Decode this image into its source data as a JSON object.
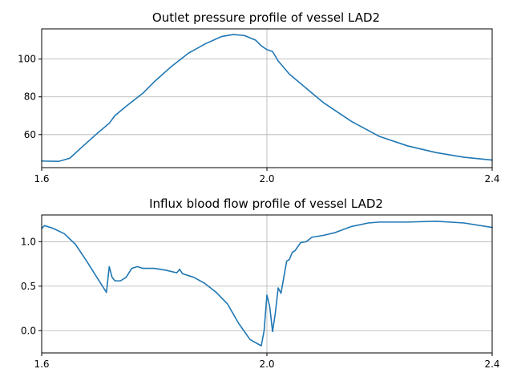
{
  "colors": {
    "series": "#1f77b4",
    "grid": "#b0b0b0"
  },
  "chart_data": [
    {
      "type": "line",
      "title": "Outlet pressure profile of vessel LAD2",
      "xlabel": "",
      "ylabel": "",
      "xlim": [
        1.6,
        2.4
      ],
      "ylim": [
        42.5,
        116
      ],
      "xticks": [
        1.6,
        2.0,
        2.4
      ],
      "xtick_labels": [
        "1.6",
        "2.0",
        "2.4"
      ],
      "yticks": [
        60,
        80,
        100
      ],
      "ytick_labels": [
        "60",
        "80",
        "100"
      ],
      "grid": true,
      "series": [
        {
          "x": [
            1.6,
            1.63,
            1.65,
            1.67,
            1.7,
            1.72,
            1.73,
            1.75,
            1.78,
            1.8,
            1.83,
            1.86,
            1.89,
            1.92,
            1.94,
            1.96,
            1.98,
            1.99,
            2.0,
            2.01,
            2.02,
            2.04,
            2.06,
            2.1,
            2.15,
            2.2,
            2.25,
            2.3,
            2.35,
            2.4
          ],
          "y": [
            46,
            45.8,
            47.5,
            53,
            61,
            66,
            70,
            75,
            82,
            88,
            96,
            103,
            108,
            112,
            113,
            112.5,
            110,
            107,
            105,
            104,
            99,
            92,
            87,
            77,
            67,
            59,
            54,
            50.5,
            48,
            46.5
          ]
        }
      ]
    },
    {
      "type": "line",
      "title": "Influx blood flow profile of vessel LAD2",
      "xlabel": "",
      "ylabel": "",
      "xlim": [
        1.6,
        2.4
      ],
      "ylim": [
        -0.25,
        1.3
      ],
      "xticks": [
        1.6,
        2.0,
        2.4
      ],
      "xtick_labels": [
        "1.6",
        "2.0",
        "2.4"
      ],
      "yticks": [
        0.0,
        0.5,
        1.0
      ],
      "ytick_labels": [
        "0.0",
        "0.5",
        "1.0"
      ],
      "grid": true,
      "series": [
        {
          "x": [
            1.6,
            1.605,
            1.62,
            1.64,
            1.66,
            1.68,
            1.7,
            1.715,
            1.72,
            1.725,
            1.73,
            1.74,
            1.75,
            1.76,
            1.77,
            1.78,
            1.8,
            1.82,
            1.84,
            1.845,
            1.85,
            1.87,
            1.89,
            1.91,
            1.93,
            1.95,
            1.97,
            1.99,
            1.995,
            2.0,
            2.005,
            2.01,
            2.015,
            2.02,
            2.025,
            2.03,
            2.035,
            2.04,
            2.045,
            2.05,
            2.06,
            2.07,
            2.08,
            2.1,
            2.12,
            2.15,
            2.18,
            2.2,
            2.25,
            2.3,
            2.35,
            2.4
          ],
          "y": [
            1.15,
            1.18,
            1.15,
            1.09,
            0.97,
            0.78,
            0.58,
            0.43,
            0.72,
            0.6,
            0.56,
            0.56,
            0.6,
            0.7,
            0.72,
            0.7,
            0.7,
            0.68,
            0.65,
            0.69,
            0.64,
            0.6,
            0.53,
            0.43,
            0.3,
            0.08,
            -0.1,
            -0.17,
            0.0,
            0.4,
            0.27,
            -0.01,
            0.2,
            0.48,
            0.42,
            0.6,
            0.78,
            0.8,
            0.88,
            0.9,
            0.99,
            1.0,
            1.05,
            1.07,
            1.1,
            1.17,
            1.21,
            1.22,
            1.22,
            1.23,
            1.21,
            1.16
          ]
        }
      ]
    }
  ]
}
